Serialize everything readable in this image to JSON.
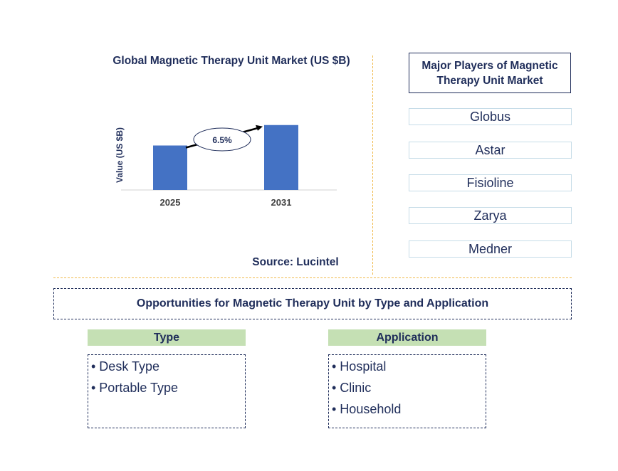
{
  "chart_data": {
    "type": "bar",
    "title": "Global Magnetic Therapy Unit Market (US $B)",
    "ylabel": "Value (US $B)",
    "xlabel": "",
    "categories": [
      "2025",
      "2031"
    ],
    "values": [
      1.0,
      1.46
    ],
    "ylim": [
      0,
      1.6
    ],
    "bar_color": "#4472c4",
    "annotation": "6.5%",
    "source": "Source: Lucintel"
  },
  "players": {
    "title": "Major Players of Magnetic Therapy Unit Market",
    "items": [
      "Globus",
      "Astar",
      "Fisioline",
      "Zarya",
      "Medner"
    ]
  },
  "opportunities": {
    "title": "Opportunities for Magnetic Therapy Unit by Type and Application",
    "type": {
      "header": "Type",
      "items": [
        "• Desk Type",
        "• Portable Type"
      ]
    },
    "application": {
      "header": "Application",
      "items": [
        "• Hospital",
        "• Clinic",
        "• Household"
      ]
    }
  },
  "colors": {
    "navy": "#1f2d5a",
    "accent_line": "#f0b94a",
    "segment_header": "#c5e0b4",
    "player_border": "#c6dce8"
  }
}
